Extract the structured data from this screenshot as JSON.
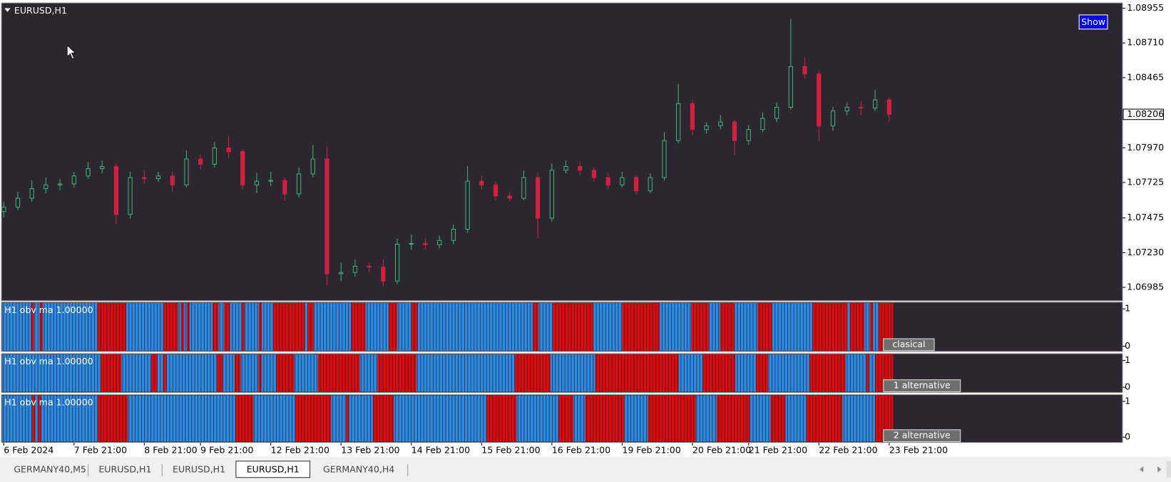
{
  "chart_data": [
    {
      "type": "candlestick",
      "title": "EURUSD,H1",
      "candles": [
        [
          1.0752,
          1.0759,
          1.0748,
          1.07551
        ],
        [
          1.07551,
          1.0766,
          1.0753,
          1.07614
        ],
        [
          1.07614,
          1.0774,
          1.0759,
          1.07682
        ],
        [
          1.07682,
          1.0776,
          1.0765,
          1.07708
        ],
        [
          1.07708,
          1.0775,
          1.0767,
          1.07715
        ],
        [
          1.07715,
          1.078,
          1.0769,
          1.07771
        ],
        [
          1.07771,
          1.0787,
          1.0775,
          1.07823
        ],
        [
          1.07823,
          1.0788,
          1.0779,
          1.07838
        ],
        [
          1.07838,
          1.0786,
          1.0743,
          1.07499
        ],
        [
          1.07499,
          1.078,
          1.0747,
          1.0776
        ],
        [
          1.0776,
          1.0781,
          1.0772,
          1.07752
        ],
        [
          1.07752,
          1.078,
          1.0773,
          1.07771
        ],
        [
          1.07771,
          1.078,
          1.0766,
          1.07708
        ],
        [
          1.07708,
          1.0795,
          1.0769,
          1.07891
        ],
        [
          1.07891,
          1.0792,
          1.0782,
          1.07854
        ],
        [
          1.07854,
          1.0801,
          1.0783,
          1.07969
        ],
        [
          1.07969,
          1.0805,
          1.079,
          1.07943
        ],
        [
          1.07943,
          1.0796,
          1.0768,
          1.07708
        ],
        [
          1.07708,
          1.0779,
          1.0765,
          1.07734
        ],
        [
          1.07734,
          1.078,
          1.077,
          1.0774
        ],
        [
          1.0774,
          1.0776,
          1.076,
          1.07645
        ],
        [
          1.07645,
          1.0783,
          1.0762,
          1.07786
        ],
        [
          1.07786,
          1.0799,
          1.0776,
          1.07891
        ],
        [
          1.07891,
          1.0798,
          1.07,
          1.07081
        ],
        [
          1.07081,
          1.0716,
          1.0703,
          1.0709
        ],
        [
          1.0709,
          1.0718,
          1.0706,
          1.07134
        ],
        [
          1.07134,
          1.0716,
          1.0709,
          1.07128
        ],
        [
          1.07128,
          1.0718,
          1.0699,
          1.07029
        ],
        [
          1.07029,
          1.0733,
          1.0701,
          1.0729
        ],
        [
          1.0729,
          1.0736,
          1.0725,
          1.07295
        ],
        [
          1.07295,
          1.0733,
          1.0725,
          1.07286
        ],
        [
          1.07286,
          1.0735,
          1.0726,
          1.07316
        ],
        [
          1.07316,
          1.0743,
          1.0729,
          1.07395
        ],
        [
          1.07395,
          1.0784,
          1.0737,
          1.07734
        ],
        [
          1.07734,
          1.0777,
          1.0768,
          1.07708
        ],
        [
          1.07708,
          1.0773,
          1.076,
          1.0763
        ],
        [
          1.0763,
          1.0766,
          1.0759,
          1.07614
        ],
        [
          1.07614,
          1.0781,
          1.076,
          1.0776
        ],
        [
          1.0776,
          1.0779,
          1.0733,
          1.07473
        ],
        [
          1.07473,
          1.0786,
          1.0745,
          1.07812
        ],
        [
          1.07812,
          1.0788,
          1.0779,
          1.07838
        ],
        [
          1.07838,
          1.0787,
          1.0778,
          1.07812
        ],
        [
          1.07812,
          1.0783,
          1.0773,
          1.0776
        ],
        [
          1.0776,
          1.0779,
          1.0768,
          1.07708
        ],
        [
          1.07708,
          1.078,
          1.0769,
          1.0776
        ],
        [
          1.0776,
          1.0778,
          1.0764,
          1.07666
        ],
        [
          1.07666,
          1.0779,
          1.0765,
          1.0776
        ],
        [
          1.0776,
          1.0808,
          1.0774,
          1.08021
        ],
        [
          1.08021,
          1.0842,
          1.08,
          1.08282
        ],
        [
          1.08282,
          1.0831,
          1.0806,
          1.08099
        ],
        [
          1.08099,
          1.0815,
          1.0807,
          1.08125
        ],
        [
          1.08125,
          1.082,
          1.081,
          1.08152
        ],
        [
          1.08152,
          1.0817,
          1.0792,
          1.08021
        ],
        [
          1.08021,
          1.0813,
          1.0799,
          1.08099
        ],
        [
          1.08099,
          1.0822,
          1.0808,
          1.08178
        ],
        [
          1.08178,
          1.0829,
          1.0815,
          1.08256
        ],
        [
          1.08256,
          1.0888,
          1.0824,
          1.08543
        ],
        [
          1.08543,
          1.0861,
          1.0846,
          1.08491
        ],
        [
          1.08491,
          1.0851,
          1.0802,
          1.08125
        ],
        [
          1.08125,
          1.0826,
          1.0809,
          1.0823
        ],
        [
          1.0823,
          1.0829,
          1.082,
          1.08256
        ],
        [
          1.08256,
          1.083,
          1.082,
          1.0825
        ],
        [
          1.0825,
          1.0838,
          1.0823,
          1.08308
        ],
        [
          1.08308,
          1.0833,
          1.0815,
          1.08206
        ]
      ],
      "up_color": "#3cb371",
      "down_color": "#d0213f",
      "background": "#2c2630",
      "xlim": [
        -0.16,
        79.6
      ],
      "ylim": [
        1.06891,
        1.08992
      ],
      "yticks": [
        1.08955,
        {
          "value": 1.0871,
          "label": "1.08710"
        },
        1.08465,
        {
          "value": 1.0797,
          "label": "1.07970"
        },
        1.07725,
        1.07475,
        {
          "value": 1.0723,
          "label": "1.07230"
        },
        1.06985
      ],
      "current_price": 1.08206,
      "xticks": [
        {
          "value": 0,
          "label": "6 Feb 2024"
        },
        {
          "value": 5,
          "label": "7 Feb 21:00"
        },
        {
          "value": 10,
          "label": "8 Feb 21:00"
        },
        {
          "value": 14,
          "label": "9 Feb 21:00"
        },
        {
          "value": 19,
          "label": "12 Feb 21:00"
        },
        {
          "value": 24,
          "label": "13 Feb 21:00"
        },
        {
          "value": 29,
          "label": "14 Feb 21:00"
        },
        {
          "value": 34,
          "label": "15 Feb 21:00"
        },
        {
          "value": 39,
          "label": "16 Feb 21:00"
        },
        {
          "value": 44,
          "label": "19 Feb 21:00"
        },
        {
          "value": 49,
          "label": "20 Feb 21:00"
        },
        {
          "value": 53,
          "label": "21 Feb 21:00"
        },
        {
          "value": 58,
          "label": "22 Feb 21:00"
        },
        {
          "value": 63,
          "label": "23 Feb 21:00"
        }
      ],
      "button": "Show"
    },
    {
      "type": "state_bars",
      "title": "H1 obv ma 1.00000",
      "button": "clasical",
      "ylim": [
        0,
        1
      ],
      "yticks": [
        1,
        0
      ],
      "colors": [
        "#dd0b0b",
        "#2d8be3"
      ],
      "runs": [
        [
          1,
          10
        ],
        [
          0,
          1
        ],
        [
          1,
          2
        ],
        [
          0,
          1
        ],
        [
          1,
          19
        ],
        [
          0,
          10
        ],
        [
          1,
          13
        ],
        [
          0,
          5
        ],
        [
          1,
          1
        ],
        [
          0,
          1
        ],
        [
          1,
          1
        ],
        [
          0,
          1
        ],
        [
          1,
          8
        ],
        [
          0,
          2
        ],
        [
          1,
          2
        ],
        [
          0,
          2
        ],
        [
          1,
          4
        ],
        [
          0,
          1
        ],
        [
          1,
          5
        ],
        [
          0,
          1
        ],
        [
          1,
          4
        ],
        [
          0,
          11
        ],
        [
          1,
          1
        ],
        [
          0,
          2
        ],
        [
          1,
          13
        ],
        [
          0,
          5
        ],
        [
          1,
          8
        ],
        [
          0,
          3
        ],
        [
          1,
          5
        ],
        [
          0,
          2
        ],
        [
          1,
          40
        ],
        [
          0,
          2
        ],
        [
          1,
          5
        ],
        [
          0,
          14
        ],
        [
          1,
          10
        ],
        [
          0,
          13
        ],
        [
          1,
          11
        ],
        [
          0,
          6
        ],
        [
          1,
          4
        ],
        [
          0,
          5
        ],
        [
          1,
          8
        ],
        [
          0,
          5
        ],
        [
          1,
          14
        ],
        [
          0,
          12
        ],
        [
          1,
          1
        ],
        [
          0,
          5
        ],
        [
          1,
          2
        ],
        [
          0,
          1
        ],
        [
          1,
          2
        ],
        [
          0,
          5
        ]
      ]
    },
    {
      "type": "state_bars",
      "title": "H1 obv ma 1.00000",
      "button": "1 alternative",
      "ylim": [
        0,
        1
      ],
      "yticks": [
        1,
        0
      ],
      "colors": [
        "#dd0b0b",
        "#2d8be3"
      ],
      "runs": [
        [
          1,
          33
        ],
        [
          0,
          7
        ],
        [
          1,
          10
        ],
        [
          0,
          2
        ],
        [
          1,
          2
        ],
        [
          0,
          1
        ],
        [
          1,
          17
        ],
        [
          0,
          2
        ],
        [
          1,
          4
        ],
        [
          0,
          2
        ],
        [
          1,
          6
        ],
        [
          0,
          1
        ],
        [
          1,
          5
        ],
        [
          0,
          6
        ],
        [
          1,
          8
        ],
        [
          0,
          14
        ],
        [
          1,
          6
        ],
        [
          0,
          13
        ],
        [
          1,
          33
        ],
        [
          0,
          12
        ],
        [
          1,
          15
        ],
        [
          0,
          28
        ],
        [
          1,
          8
        ],
        [
          0,
          11
        ],
        [
          1,
          7
        ],
        [
          0,
          4
        ],
        [
          1,
          14
        ],
        [
          0,
          12
        ],
        [
          1,
          7
        ],
        [
          0,
          1
        ],
        [
          1,
          2
        ],
        [
          0,
          6
        ]
      ]
    },
    {
      "type": "state_bars",
      "title": "H1 obv ma 1.00000",
      "button": "2 alternative",
      "ylim": [
        0,
        1
      ],
      "yticks": [
        1,
        0
      ],
      "colors": [
        "#dd0b0b",
        "#2d8be3"
      ],
      "runs": [
        [
          1,
          10
        ],
        [
          0,
          1
        ],
        [
          1,
          1
        ],
        [
          0,
          1
        ],
        [
          1,
          19
        ],
        [
          0,
          10
        ],
        [
          1,
          36
        ],
        [
          0,
          6
        ],
        [
          1,
          14
        ],
        [
          0,
          12
        ],
        [
          1,
          5
        ],
        [
          0,
          1
        ],
        [
          1,
          8
        ],
        [
          0,
          7
        ],
        [
          1,
          31
        ],
        [
          0,
          10
        ],
        [
          1,
          14
        ],
        [
          0,
          5
        ],
        [
          1,
          4
        ],
        [
          0,
          13
        ],
        [
          1,
          8
        ],
        [
          0,
          16
        ],
        [
          1,
          7
        ],
        [
          0,
          11
        ],
        [
          1,
          7
        ],
        [
          0,
          5
        ],
        [
          1,
          7
        ],
        [
          0,
          12
        ],
        [
          1,
          11
        ],
        [
          0,
          6
        ]
      ]
    }
  ],
  "tabs": [
    "GERMANY40,M5",
    "EURUSD,H1",
    "EURUSD,H1",
    "EURUSD,H1",
    "GERMANY40,H4"
  ]
}
